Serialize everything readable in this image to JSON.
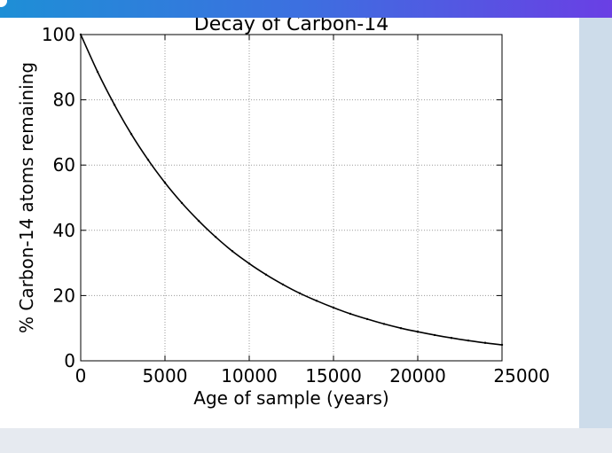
{
  "chart_data": {
    "type": "line",
    "title": "Decay of Carbon-14",
    "xlabel": "Age of sample (years)",
    "ylabel": "% Carbon-14 atoms remaining",
    "xlim": [
      0,
      25000
    ],
    "ylim": [
      0,
      100
    ],
    "xticks": [
      0,
      5000,
      10000,
      15000,
      20000,
      25000
    ],
    "yticks": [
      0,
      20,
      40,
      60,
      80,
      100
    ],
    "grid": true,
    "series": [
      {
        "color": "#000000",
        "x": [
          0,
          1000,
          2000,
          3000,
          4000,
          5000,
          6000,
          7000,
          8000,
          9000,
          10000,
          11000,
          12000,
          13000,
          14000,
          15000,
          16000,
          17000,
          18000,
          19000,
          20000,
          21000,
          22000,
          23000,
          24000,
          25000
        ],
        "y": [
          100,
          88.6,
          78.5,
          69.5,
          61.6,
          54.6,
          48.4,
          42.9,
          38.0,
          33.6,
          29.8,
          26.4,
          23.4,
          20.7,
          18.4,
          16.3,
          14.4,
          12.8,
          11.3,
          10.0,
          8.9,
          7.9,
          7.0,
          6.2,
          5.5,
          4.9
        ]
      }
    ]
  }
}
